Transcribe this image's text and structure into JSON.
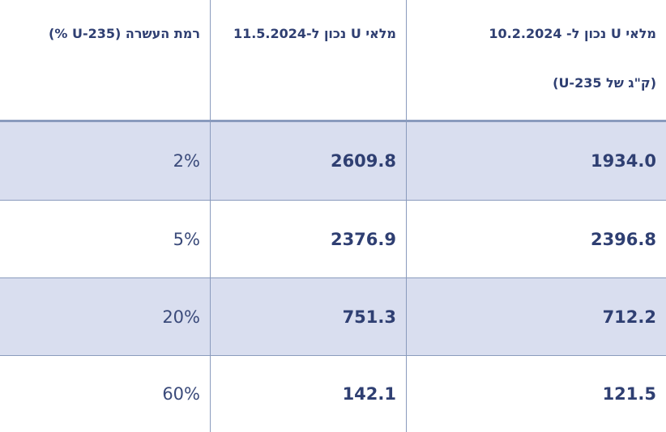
{
  "table": {
    "headers": {
      "enrichment": "רמת העשרה  (U-235 %)",
      "may_2024": "מלאי  U נכון ל-11.5.2024",
      "feb_2024_line1": "מלאי U נכון ל- 10.2.2024",
      "feb_2024_line2": "(ק\"ג של U-235)"
    },
    "rows": [
      {
        "enrichment": "2%",
        "may_2024": "2609.8",
        "feb_2024": "1934.0"
      },
      {
        "enrichment": "5%",
        "may_2024": "2376.9",
        "feb_2024": "2396.8"
      },
      {
        "enrichment": "20%",
        "may_2024": "751.3",
        "feb_2024": "712.2"
      },
      {
        "enrichment": "60%",
        "may_2024": "142.1",
        "feb_2024": "121.5"
      }
    ]
  },
  "colors": {
    "header_text": "#2f3f72",
    "row_shade": "#d9deef",
    "grid_line": "#8a9bbd"
  }
}
